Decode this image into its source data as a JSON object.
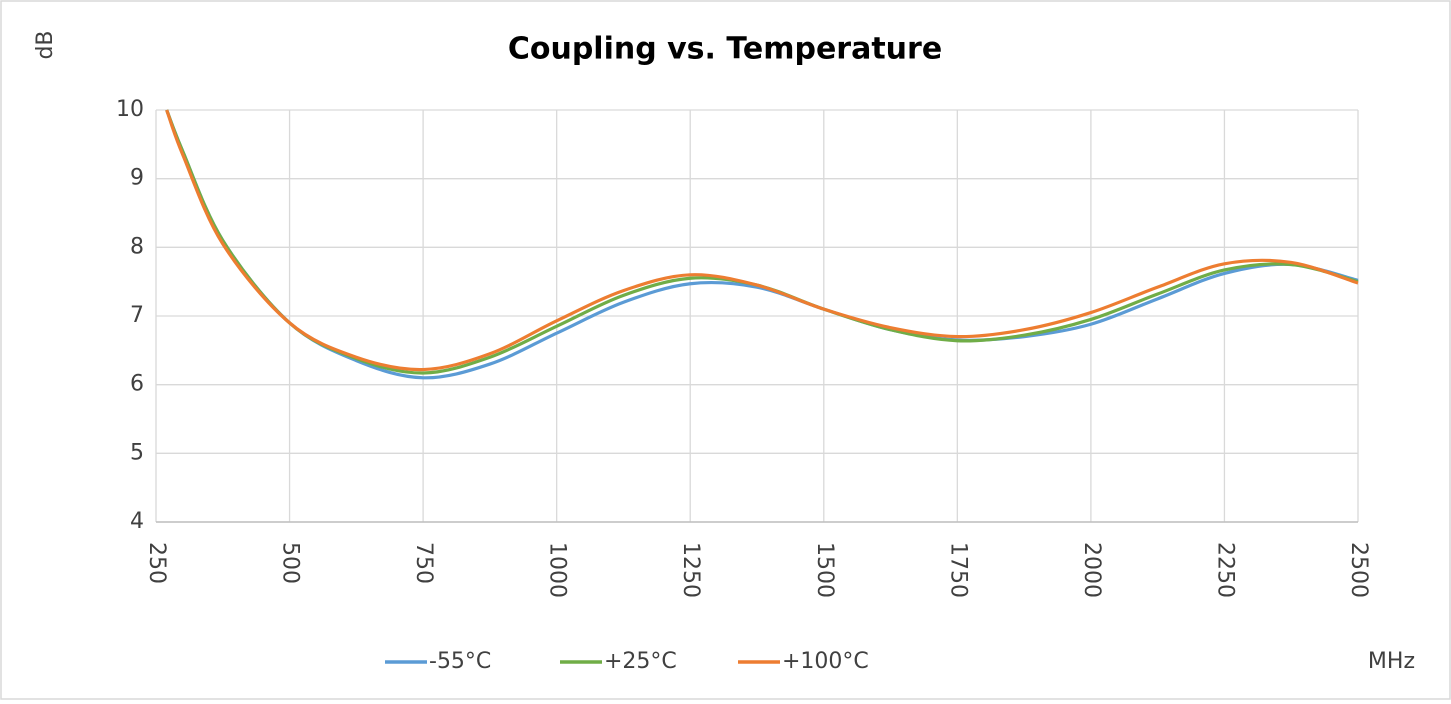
{
  "chart_data": {
    "type": "line",
    "title": "Coupling vs. Temperature",
    "y_label": "dB",
    "x_label": "MHz",
    "x": [
      270,
      300,
      375,
      500,
      625,
      750,
      875,
      1000,
      1125,
      1250,
      1375,
      1500,
      1625,
      1750,
      1875,
      2000,
      2125,
      2250,
      2375,
      2500
    ],
    "series": [
      {
        "name": "-55°C",
        "color": "#5b9bd5",
        "values": [
          10,
          9.4,
          8.1,
          6.9,
          6.35,
          6.1,
          6.3,
          6.75,
          7.2,
          7.47,
          7.42,
          7.1,
          6.8,
          6.65,
          6.7,
          6.88,
          7.25,
          7.62,
          7.75,
          7.52
        ]
      },
      {
        "name": "+25°C",
        "color": "#70ad47",
        "values": [
          10,
          9.4,
          8.1,
          6.9,
          6.38,
          6.17,
          6.4,
          6.85,
          7.3,
          7.55,
          7.45,
          7.1,
          6.8,
          6.64,
          6.72,
          6.95,
          7.32,
          7.67,
          7.75,
          7.5
        ]
      },
      {
        "name": "+100°C",
        "color": "#ed7d31",
        "values": [
          10,
          9.35,
          8.05,
          6.9,
          6.4,
          6.22,
          6.45,
          6.93,
          7.37,
          7.6,
          7.45,
          7.1,
          6.83,
          6.7,
          6.8,
          7.05,
          7.42,
          7.76,
          7.78,
          7.48
        ]
      }
    ],
    "xlim": [
      250,
      2500
    ],
    "xticks": [
      250,
      500,
      750,
      1000,
      1250,
      1500,
      1750,
      2000,
      2250,
      2500
    ],
    "ylim": [
      4,
      10
    ],
    "yticks": [
      4,
      5,
      6,
      7,
      8,
      9,
      10
    ],
    "grid": true,
    "legend": "bottom"
  }
}
